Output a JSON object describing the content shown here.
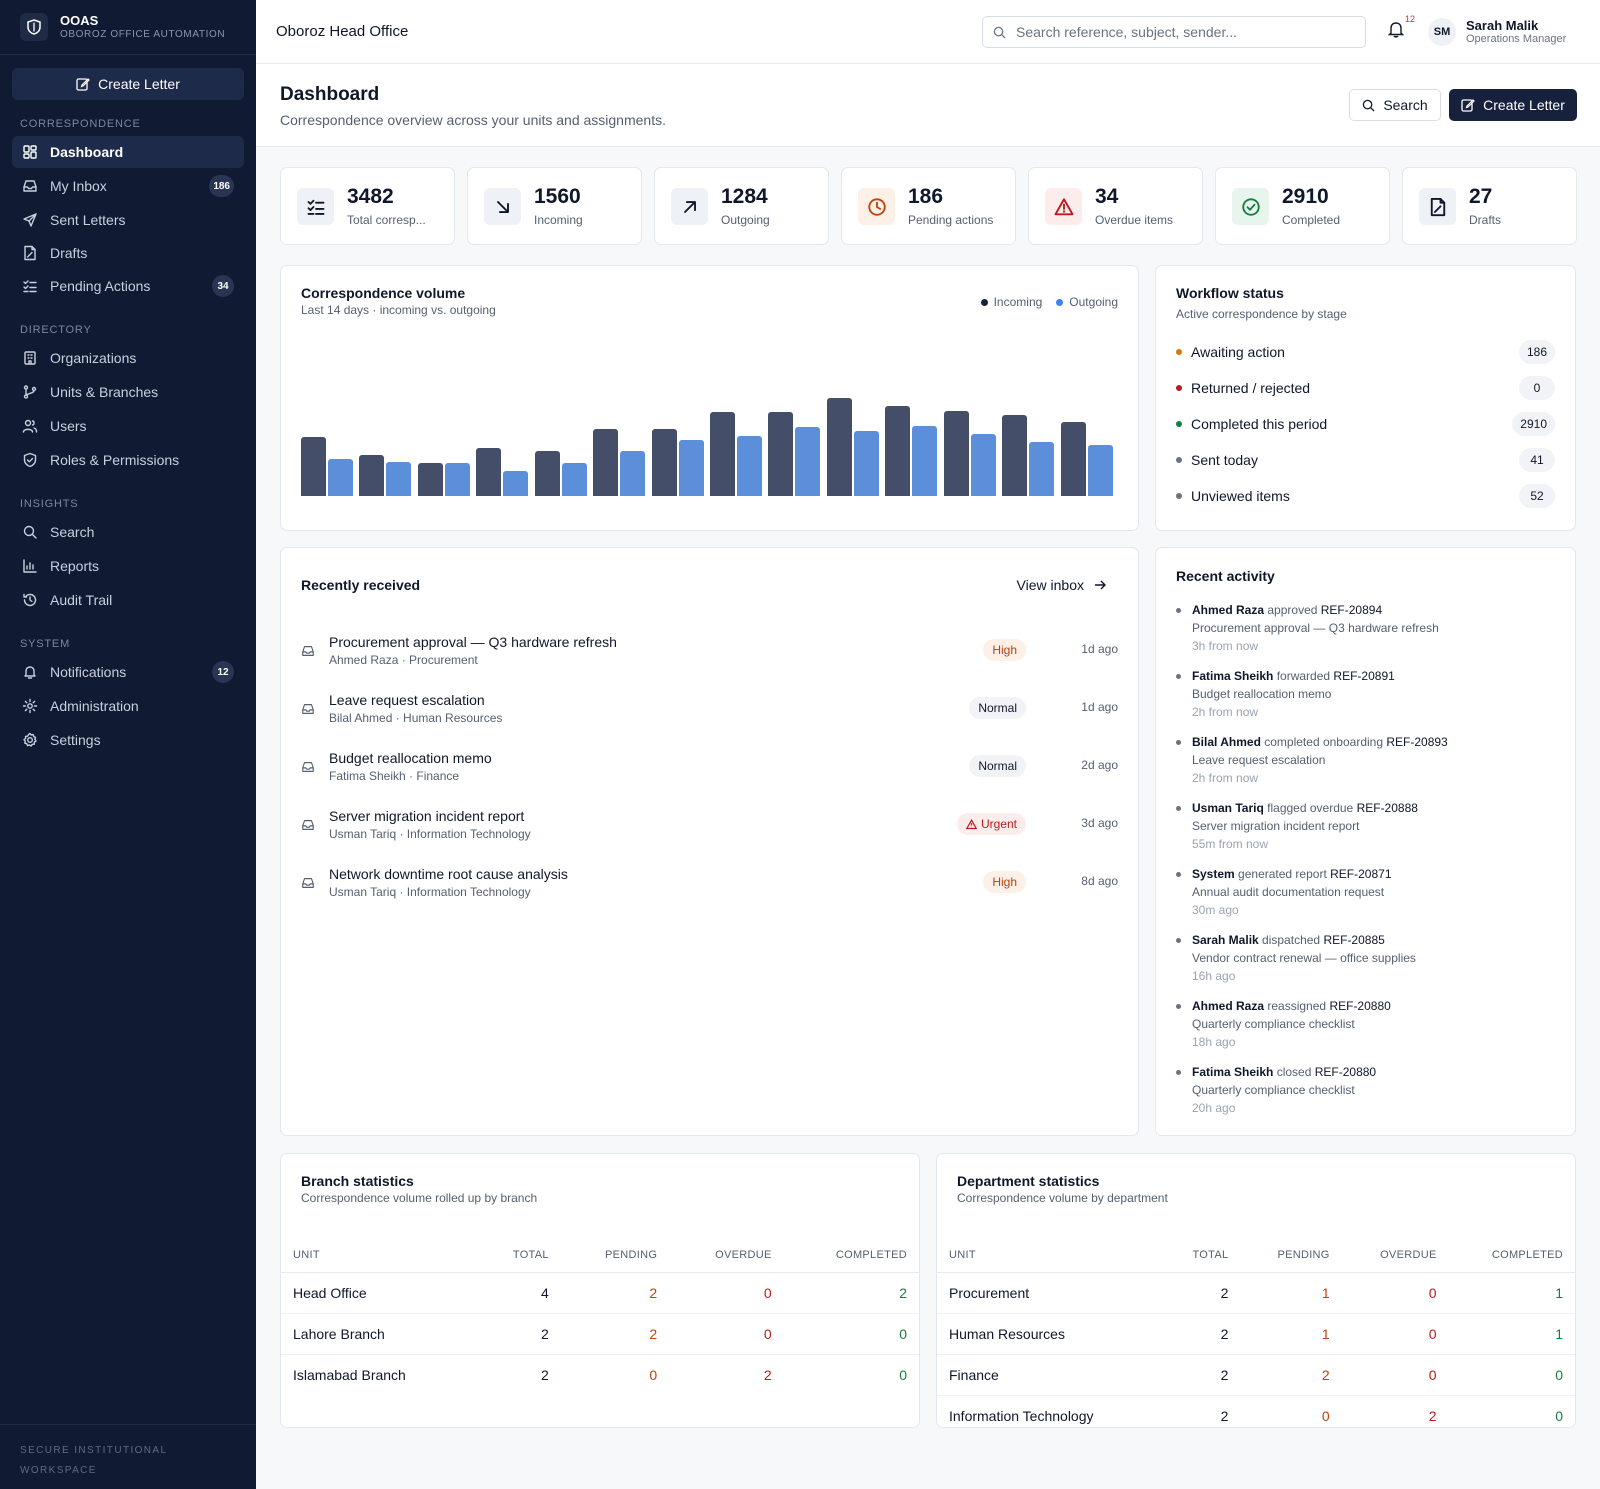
{
  "sidebar": {
    "brand_name": "OOAS",
    "brand_sub": "OBOROZ OFFICE AUTOMATION",
    "create_label": "Create Letter",
    "sections": [
      {
        "title": "CORRESPONDENCE",
        "items": [
          {
            "label": "Dashboard",
            "icon": "dashboard-icon",
            "active": true
          },
          {
            "label": "My Inbox",
            "icon": "inbox-icon",
            "badge": "186"
          },
          {
            "label": "Sent Letters",
            "icon": "send-icon"
          },
          {
            "label": "Drafts",
            "icon": "draft-icon"
          },
          {
            "label": "Pending Actions",
            "icon": "checklist-icon",
            "badge": "34"
          }
        ]
      },
      {
        "title": "DIRECTORY",
        "items": [
          {
            "label": "Organizations",
            "icon": "building-icon"
          },
          {
            "label": "Units & Branches",
            "icon": "branch-icon"
          },
          {
            "label": "Users",
            "icon": "users-icon"
          },
          {
            "label": "Roles & Permissions",
            "icon": "shield-icon"
          }
        ]
      },
      {
        "title": "INSIGHTS",
        "items": [
          {
            "label": "Search",
            "icon": "search-icon"
          },
          {
            "label": "Reports",
            "icon": "chart-icon"
          },
          {
            "label": "Audit Trail",
            "icon": "history-icon"
          }
        ]
      },
      {
        "title": "SYSTEM",
        "items": [
          {
            "label": "Notifications",
            "icon": "bell-icon",
            "badge": "12"
          },
          {
            "label": "Administration",
            "icon": "admin-icon"
          },
          {
            "label": "Settings",
            "icon": "gear-icon"
          }
        ]
      }
    ],
    "footer": "SECURE INSTITUTIONAL WORKSPACE"
  },
  "topbar": {
    "title": "Oboroz Head Office",
    "search_placeholder": "Search reference, subject, sender...",
    "notif_count": "12",
    "avatar_initials": "SM",
    "user_name": "Sarah Malik",
    "user_role": "Operations Manager"
  },
  "page": {
    "title": "Dashboard",
    "subtitle": "Correspondence overview across your units and assignments.",
    "search_label": "Search",
    "create_label": "Create Letter"
  },
  "stats": [
    {
      "value": "3482",
      "label": "Total corresp...",
      "icon": "checklist-icon",
      "color": "#0f172a",
      "bg": "#eef1f6"
    },
    {
      "value": "1560",
      "label": "Incoming",
      "icon": "arrow-down-right-icon",
      "color": "#0f172a",
      "bg": "#eef1f6"
    },
    {
      "value": "1284",
      "label": "Outgoing",
      "icon": "arrow-up-right-icon",
      "color": "#0f172a",
      "bg": "#eef1f6"
    },
    {
      "value": "186",
      "label": "Pending actions",
      "icon": "clock-icon",
      "color": "#c2410c",
      "bg": "#fdf0e6"
    },
    {
      "value": "34",
      "label": "Overdue items",
      "icon": "warning-icon",
      "color": "#b91c1c",
      "bg": "#fdecec"
    },
    {
      "value": "2910",
      "label": "Completed",
      "icon": "check-circle-icon",
      "color": "#15803d",
      "bg": "#e8f5ec"
    },
    {
      "value": "27",
      "label": "Drafts",
      "icon": "draft-icon",
      "color": "#0f172a",
      "bg": "#eef1f6"
    }
  ],
  "volume": {
    "title": "Correspondence volume",
    "subtitle": "Last 14 days · incoming vs. outgoing",
    "chart_data": {
      "type": "bar",
      "ylim": [
        0,
        100
      ],
      "series": [
        {
          "name": "Incoming",
          "color": "#454e68",
          "values": [
            60,
            42,
            34,
            49,
            46,
            68,
            68,
            86,
            86,
            100,
            92,
            87,
            83,
            76
          ]
        },
        {
          "name": "Outgoing",
          "color": "#5b8fd9",
          "values": [
            38,
            35,
            34,
            26,
            34,
            46,
            57,
            61,
            70,
            66,
            71,
            63,
            55,
            52
          ]
        }
      ]
    }
  },
  "workflow": {
    "title": "Workflow status",
    "subtitle": "Active correspondence by stage",
    "rows": [
      {
        "label": "Awaiting action",
        "count": "186",
        "color": "#d97706"
      },
      {
        "label": "Returned / rejected",
        "count": "0",
        "color": "#b91c1c"
      },
      {
        "label": "Completed this period",
        "count": "2910",
        "color": "#15803d"
      },
      {
        "label": "Sent today",
        "count": "41",
        "color": "#6b7280"
      },
      {
        "label": "Unviewed items",
        "count": "52",
        "color": "#6b7280"
      }
    ]
  },
  "recent": {
    "title": "Recently received",
    "view_label": "View inbox",
    "items": [
      {
        "subject": "Procurement approval — Q3 hardware refresh",
        "meta": "Ahmed Raza · Procurement",
        "priority": "High",
        "time": "1d ago"
      },
      {
        "subject": "Leave request escalation",
        "meta": "Bilal Ahmed · Human Resources",
        "priority": "Normal",
        "time": "1d ago"
      },
      {
        "subject": "Budget reallocation memo",
        "meta": "Fatima Sheikh · Finance",
        "priority": "Normal",
        "time": "2d ago"
      },
      {
        "subject": "Server migration incident report",
        "meta": "Usman Tariq · Information Technology",
        "priority": "Urgent",
        "time": "3d ago"
      },
      {
        "subject": "Network downtime root cause analysis",
        "meta": "Usman Tariq · Information Technology",
        "priority": "High",
        "time": "8d ago"
      }
    ]
  },
  "activity": {
    "title": "Recent activity",
    "items": [
      {
        "actor": "Ahmed Raza",
        "action": "approved",
        "ref": "REF-20894",
        "subject": "Procurement approval — Q3 hardware refresh",
        "time": "3h from now"
      },
      {
        "actor": "Fatima Sheikh",
        "action": "forwarded",
        "ref": "REF-20891",
        "subject": "Budget reallocation memo",
        "time": "2h from now"
      },
      {
        "actor": "Bilal Ahmed",
        "action": "completed onboarding",
        "ref": "REF-20893",
        "subject": "Leave request escalation",
        "time": "2h from now"
      },
      {
        "actor": "Usman Tariq",
        "action": "flagged overdue",
        "ref": "REF-20888",
        "subject": "Server migration incident report",
        "time": "55m from now"
      },
      {
        "actor": "System",
        "action": "generated report",
        "ref": "REF-20871",
        "subject": "Annual audit documentation request",
        "time": "30m ago"
      },
      {
        "actor": "Sarah Malik",
        "action": "dispatched",
        "ref": "REF-20885",
        "subject": "Vendor contract renewal — office supplies",
        "time": "16h ago"
      },
      {
        "actor": "Ahmed Raza",
        "action": "reassigned",
        "ref": "REF-20880",
        "subject": "Quarterly compliance checklist",
        "time": "18h ago"
      },
      {
        "actor": "Fatima Sheikh",
        "action": "closed",
        "ref": "REF-20880",
        "subject": "Quarterly compliance checklist",
        "time": "20h ago"
      }
    ]
  },
  "branch": {
    "title": "Branch statistics",
    "subtitle": "Correspondence volume rolled up by branch",
    "columns": [
      "UNIT",
      "TOTAL",
      "PENDING",
      "OVERDUE",
      "COMPLETED"
    ],
    "rows": [
      [
        "Head Office",
        "4",
        "2",
        "0",
        "2"
      ],
      [
        "Lahore Branch",
        "2",
        "2",
        "0",
        "0"
      ],
      [
        "Islamabad Branch",
        "2",
        "0",
        "2",
        "0"
      ]
    ]
  },
  "department": {
    "title": "Department statistics",
    "subtitle": "Correspondence volume by department",
    "columns": [
      "UNIT",
      "TOTAL",
      "PENDING",
      "OVERDUE",
      "COMPLETED"
    ],
    "rows": [
      [
        "Procurement",
        "2",
        "1",
        "0",
        "1"
      ],
      [
        "Human Resources",
        "2",
        "1",
        "0",
        "1"
      ],
      [
        "Finance",
        "2",
        "2",
        "0",
        "0"
      ],
      [
        "Information Technology",
        "2",
        "0",
        "2",
        "0"
      ]
    ]
  }
}
